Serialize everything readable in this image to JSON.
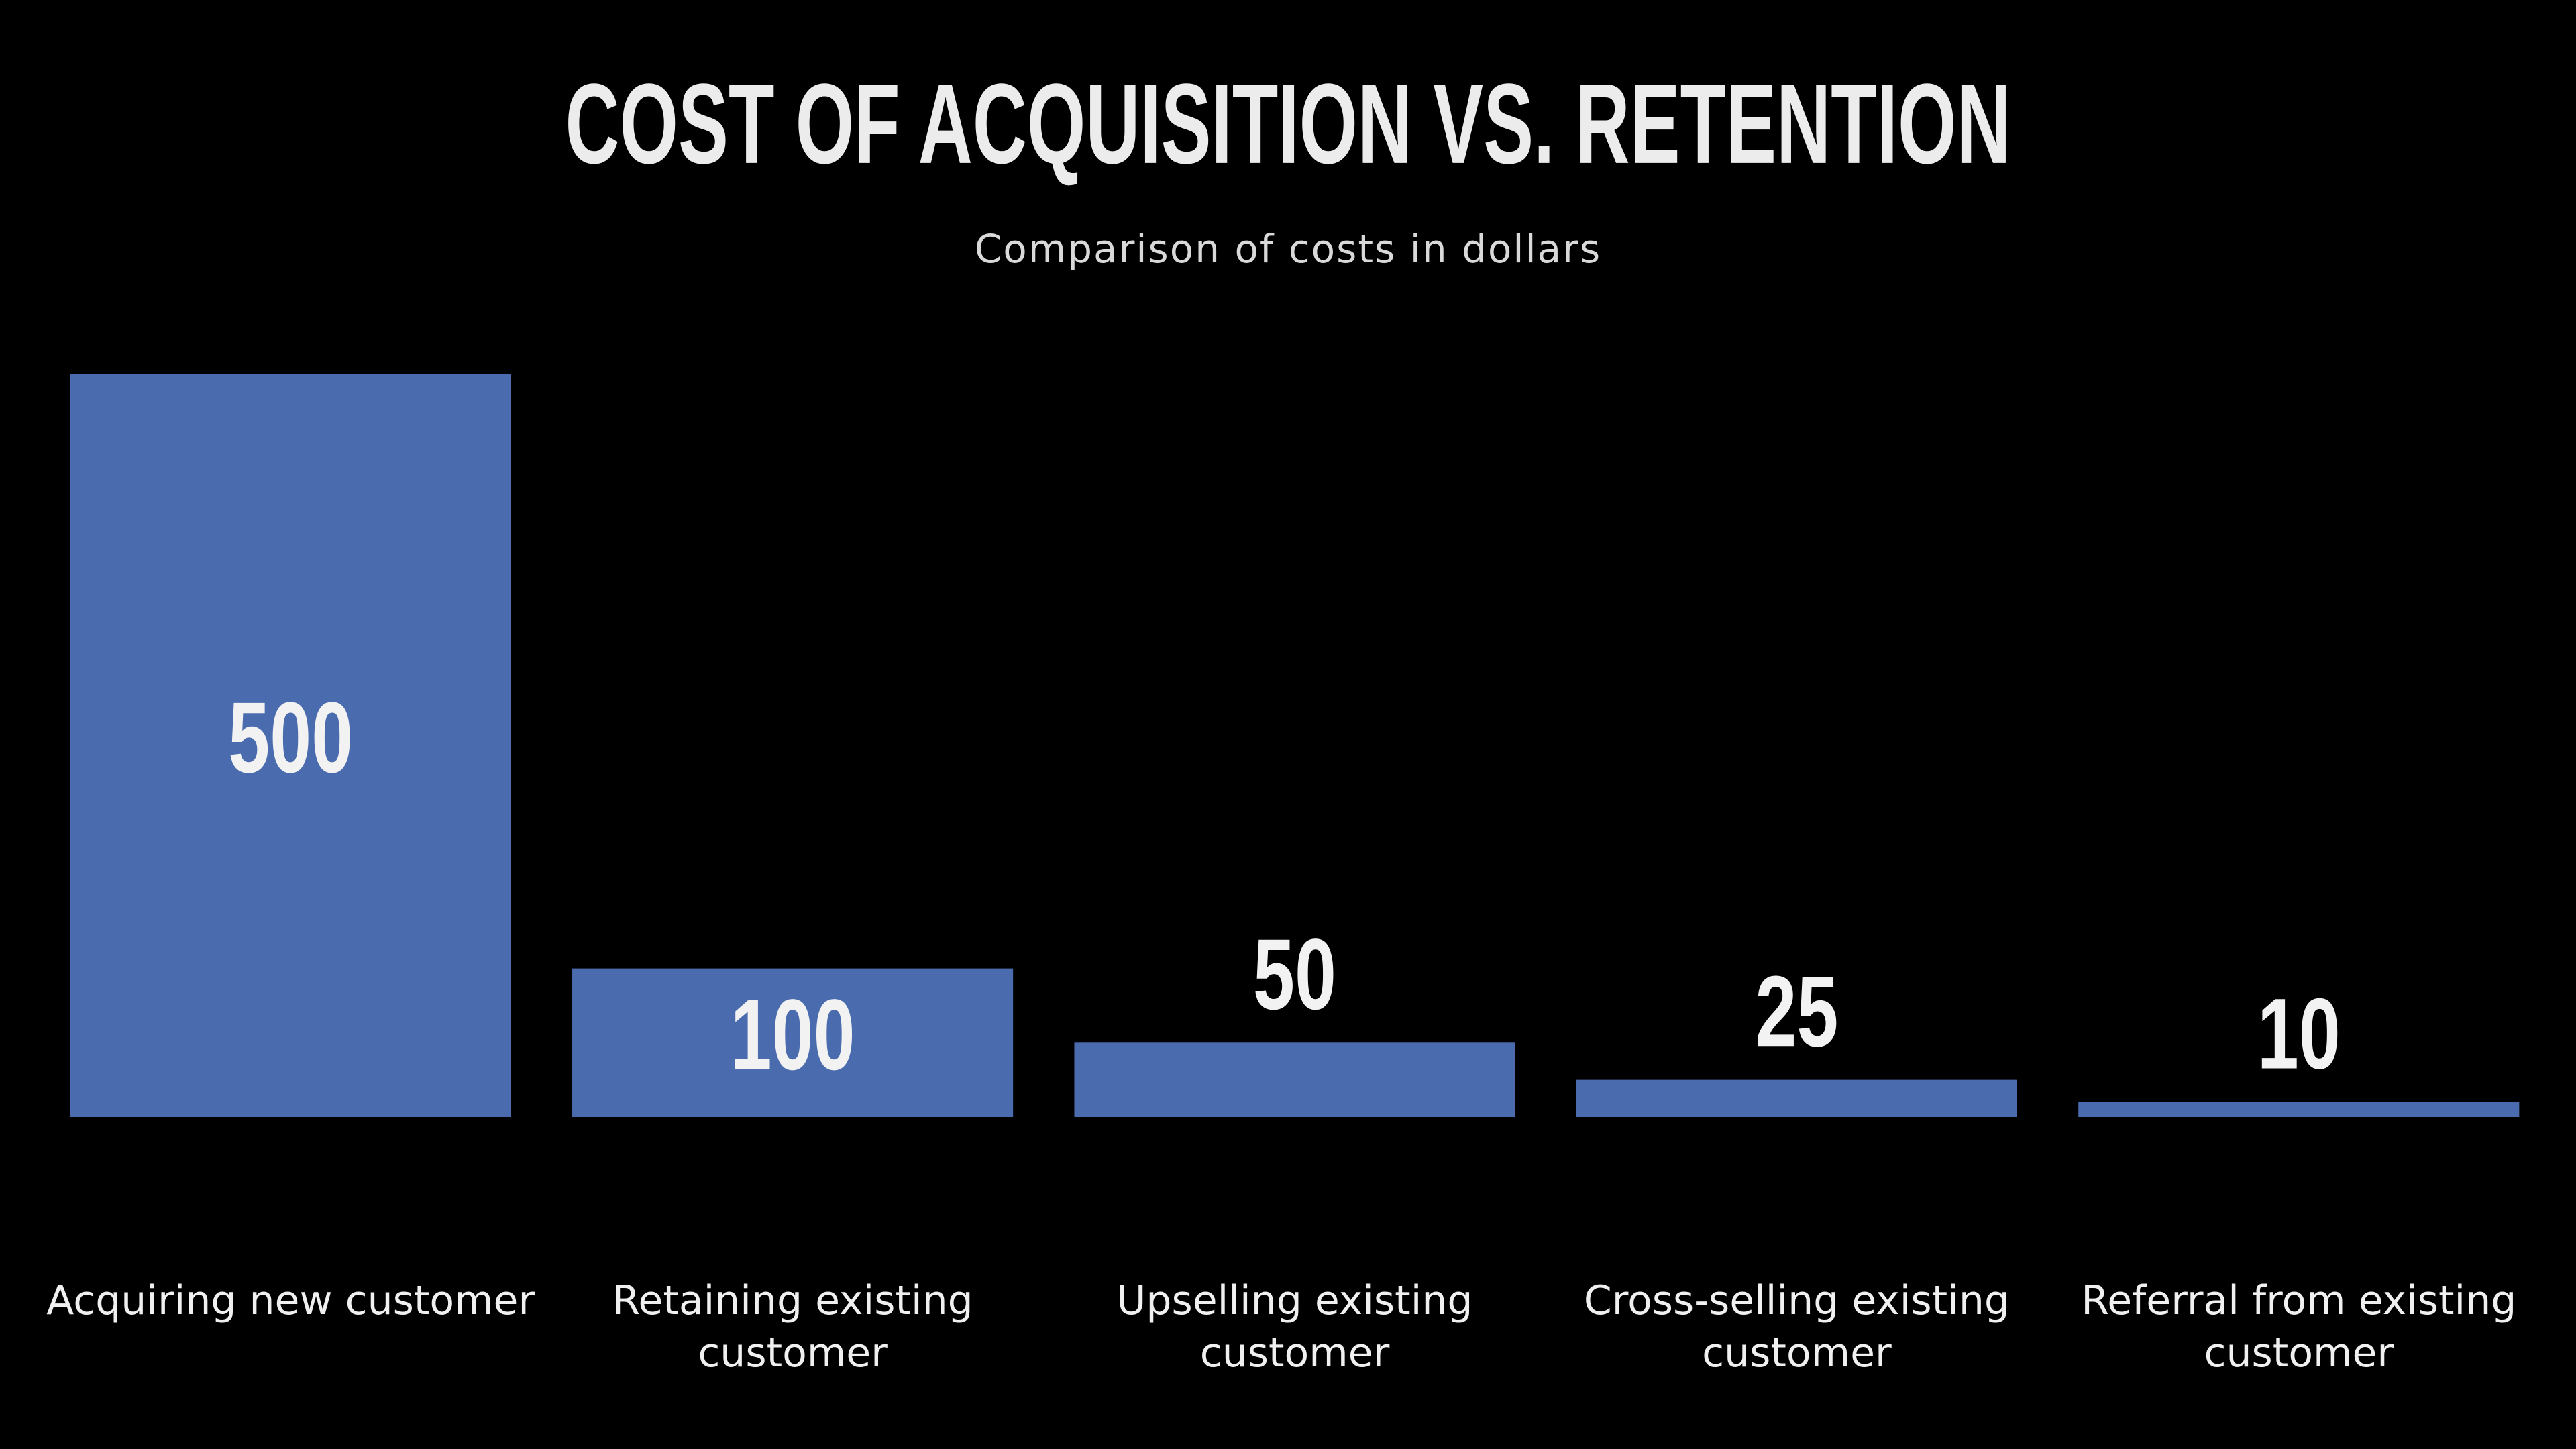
{
  "chart_data": {
    "type": "bar",
    "title": "COST OF ACQUISITION VS. RETENTION",
    "subtitle": "Comparison of costs in dollars",
    "categories": [
      "Acquiring new customer",
      "Retaining existing customer",
      "Upselling existing customer",
      "Cross-selling existing customer",
      "Referral from existing customer"
    ],
    "values": [
      500,
      100,
      50,
      25,
      10
    ],
    "color": "#4a6cae",
    "grid": false
  }
}
